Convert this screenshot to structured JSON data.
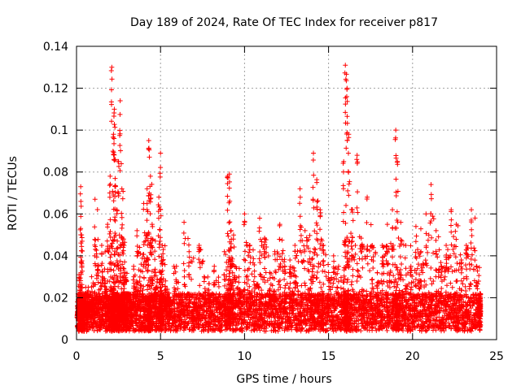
{
  "chart_data": {
    "type": "scatter",
    "title": "Day 189 of 2024, Rate Of TEC Index for receiver p817",
    "xlabel": "GPS time / hours",
    "ylabel": "ROTI / TECUs",
    "xlim": [
      0,
      25
    ],
    "ylim": [
      0,
      0.14
    ],
    "x_ticks": [
      0,
      5,
      10,
      15,
      20,
      25
    ],
    "x_tick_labels": [
      "0",
      "5",
      "10",
      "15",
      "20",
      "25"
    ],
    "y_ticks": [
      0,
      0.02,
      0.04,
      0.06,
      0.08,
      0.1,
      0.12,
      0.14
    ],
    "y_tick_labels": [
      "0",
      "0.02",
      "0.04",
      "0.06",
      "0.08",
      "0.1",
      "0.12",
      "0.14"
    ],
    "grid": true,
    "marker": "+",
    "series": [
      {
        "name": "ROTI",
        "color": "#ff0000",
        "x": [
          0.05,
          0.15,
          0.25,
          0.3,
          0.35,
          0.45,
          0.55,
          0.7,
          0.9,
          1.1,
          1.3,
          1.5,
          1.7,
          1.85,
          2.0,
          2.1,
          2.2,
          2.25,
          2.3,
          2.4,
          2.5,
          2.6,
          2.7,
          2.8,
          2.9,
          3.0,
          3.2,
          3.4,
          3.6,
          3.8,
          4.0,
          4.2,
          4.3,
          4.4,
          4.5,
          4.7,
          4.9,
          5.0,
          5.1,
          5.3,
          5.5,
          5.8,
          6.1,
          6.4,
          6.7,
          7.0,
          7.3,
          7.6,
          7.9,
          8.2,
          8.5,
          8.8,
          9.0,
          9.1,
          9.2,
          9.4,
          9.7,
          10.0,
          10.3,
          10.6,
          10.9,
          11.2,
          11.5,
          11.8,
          12.1,
          12.4,
          12.7,
          13.0,
          13.3,
          13.6,
          13.9,
          14.1,
          14.3,
          14.5,
          14.7,
          15.0,
          15.3,
          15.6,
          15.9,
          16.0,
          16.1,
          16.2,
          16.4,
          16.7,
          17.0,
          17.3,
          17.6,
          17.9,
          18.2,
          18.5,
          18.8,
          19.0,
          19.1,
          19.3,
          19.6,
          19.9,
          20.2,
          20.5,
          20.8,
          21.1,
          21.4,
          21.7,
          22.0,
          22.3,
          22.6,
          22.9,
          23.2,
          23.5,
          23.8,
          24.0
        ],
        "y": [
          0.012,
          0.031,
          0.073,
          0.05,
          0.022,
          0.018,
          0.025,
          0.015,
          0.03,
          0.067,
          0.035,
          0.045,
          0.028,
          0.055,
          0.078,
          0.13,
          0.098,
          0.11,
          0.086,
          0.062,
          0.085,
          0.114,
          0.072,
          0.048,
          0.032,
          0.022,
          0.018,
          0.035,
          0.052,
          0.041,
          0.065,
          0.072,
          0.095,
          0.078,
          0.055,
          0.032,
          0.068,
          0.089,
          0.045,
          0.028,
          0.018,
          0.035,
          0.022,
          0.056,
          0.042,
          0.018,
          0.045,
          0.03,
          0.022,
          0.035,
          0.018,
          0.042,
          0.078,
          0.079,
          0.052,
          0.035,
          0.024,
          0.06,
          0.045,
          0.03,
          0.058,
          0.048,
          0.032,
          0.042,
          0.055,
          0.035,
          0.038,
          0.045,
          0.072,
          0.052,
          0.042,
          0.089,
          0.075,
          0.062,
          0.045,
          0.032,
          0.04,
          0.035,
          0.085,
          0.131,
          0.12,
          0.098,
          0.062,
          0.088,
          0.045,
          0.068,
          0.045,
          0.032,
          0.045,
          0.055,
          0.062,
          0.1,
          0.085,
          0.056,
          0.045,
          0.035,
          0.054,
          0.042,
          0.06,
          0.074,
          0.052,
          0.035,
          0.045,
          0.062,
          0.055,
          0.038,
          0.045,
          0.062,
          0.035,
          0.022
        ]
      }
    ]
  }
}
